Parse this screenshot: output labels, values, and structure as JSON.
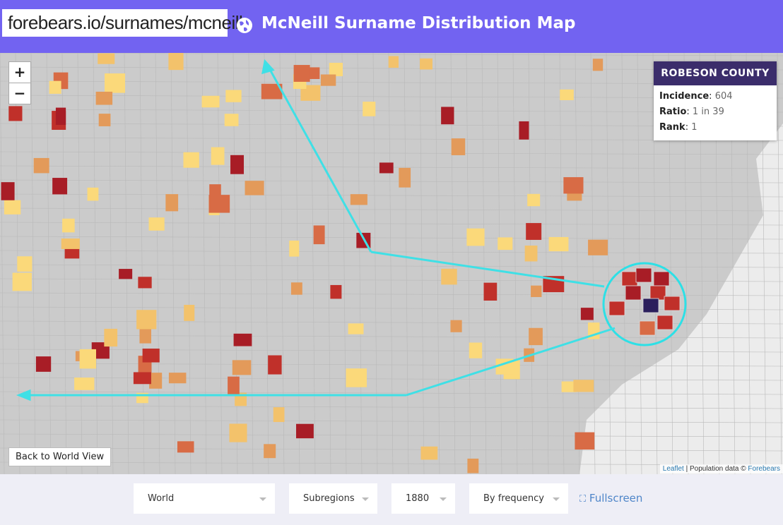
{
  "header": {
    "url": "forebears.io/surnames/mcneill",
    "title": "McNeill Surname Distribution Map"
  },
  "zoom": {
    "in": "+",
    "out": "−"
  },
  "popup": {
    "title": "ROBESON COUNTY",
    "separator": ":",
    "rows": [
      {
        "label": "Incidence",
        "value": 604
      },
      {
        "label": "Ratio",
        "value": "1 in 39"
      },
      {
        "label": "Rank",
        "value": 1
      }
    ]
  },
  "back_button": "Back to World View",
  "attribution": {
    "leaflet": "Leaflet",
    "text": "| Population data ©",
    "source": "Forebears"
  },
  "controls": {
    "region": "World",
    "level": "Subregions",
    "year": "1880",
    "mode": "By frequency",
    "fullscreen": "Fullscreen"
  }
}
